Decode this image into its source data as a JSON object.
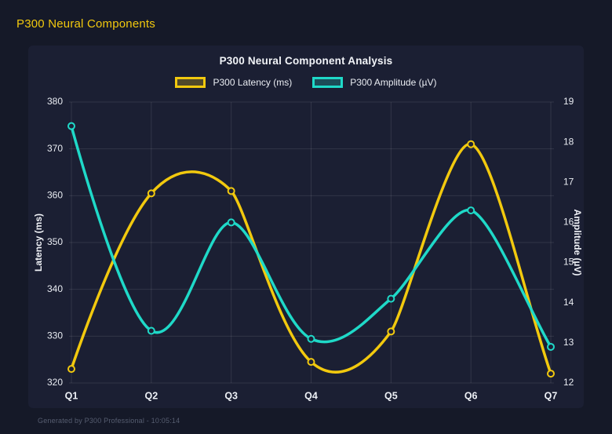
{
  "page": {
    "title": "P300 Neural Components",
    "footer": "Generated by P300 Professional - 10:05:14"
  },
  "chart_data": {
    "type": "line",
    "title": "P300 Neural Component Analysis",
    "categories": [
      "Q1",
      "Q2",
      "Q3",
      "Q4",
      "Q5",
      "Q6",
      "Q7"
    ],
    "series": [
      {
        "name": "P300 Latency (ms)",
        "axis": "left",
        "color": "#F2C90E",
        "values": [
          323,
          360.5,
          361,
          324.5,
          331,
          371,
          322
        ]
      },
      {
        "name": "P300 Amplitude (µV)",
        "axis": "right",
        "color": "#1FD9C8",
        "values": [
          18.4,
          13.3,
          16.0,
          13.1,
          14.1,
          16.3,
          12.9
        ]
      }
    ],
    "left_axis": {
      "label": "Latency (ms)",
      "min": 320,
      "max": 380,
      "step": 10
    },
    "right_axis": {
      "label": "Amplitude (µV)",
      "min": 12,
      "max": 19,
      "step": 1
    },
    "grid": true,
    "legend_position": "top",
    "line_tension": 0.3,
    "colors": {
      "page_background": "#151928",
      "card_background": "#1b1f33",
      "grid_line": "rgba(255,255,255,0.10)",
      "tick_text": "#e9ecf2",
      "axis_title_text": "#f0f2f7",
      "category_text": "#eef1f6",
      "title_yellow": "#F2C90E",
      "footer_text": "#565d70"
    }
  }
}
